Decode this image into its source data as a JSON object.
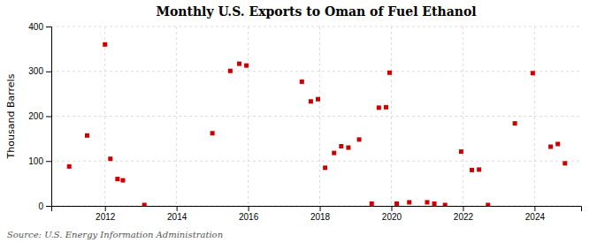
{
  "chart_data": {
    "type": "scatter",
    "title": "Monthly U.S. Exports to Oman of Fuel Ethanol",
    "ylabel": "Thousand Barrels",
    "annotations": [
      "Source: U.S. Energy Information Administration"
    ],
    "color": "#cc0000",
    "marker": "square",
    "grid": true,
    "xlim": [
      2010.5,
      2025.3
    ],
    "xticks": [
      2012,
      2014,
      2016,
      2018,
      2020,
      2022,
      2024
    ],
    "ylim": [
      0,
      400
    ],
    "yticks": [
      0,
      100,
      200,
      300,
      400
    ],
    "x": [
      2011.0,
      2011.5,
      2012.0,
      2012.15,
      2012.35,
      2012.5,
      2013.1,
      2015.0,
      2015.5,
      2015.75,
      2015.95,
      2017.5,
      2017.75,
      2017.95,
      2018.15,
      2018.4,
      2018.6,
      2018.8,
      2019.1,
      2019.45,
      2019.65,
      2019.85,
      2019.95,
      2020.15,
      2020.5,
      2021.0,
      2021.2,
      2021.5,
      2021.95,
      2022.25,
      2022.45,
      2022.7,
      2023.45,
      2023.95,
      2024.45,
      2024.65,
      2024.85
    ],
    "values": [
      88,
      157,
      360,
      105,
      60,
      57,
      2,
      162,
      301,
      317,
      313,
      277,
      233,
      238,
      85,
      118,
      133,
      130,
      148,
      5,
      219,
      220,
      297,
      5,
      8,
      8,
      5,
      2,
      121,
      80,
      81,
      2,
      184,
      296,
      132,
      138,
      95
    ]
  }
}
